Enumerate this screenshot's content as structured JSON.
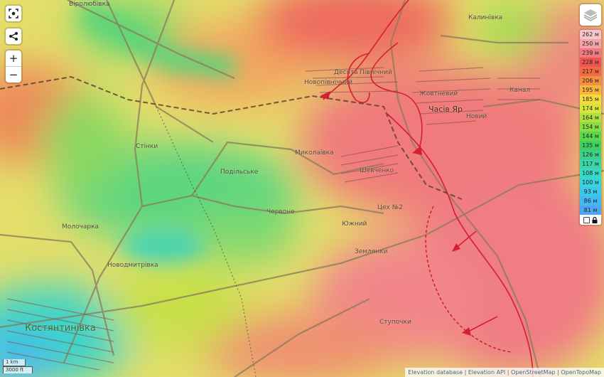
{
  "controls": {
    "fullscreen_icon": "target-frame-icon",
    "share_icon": "share-icon",
    "zoom_in": "+",
    "zoom_out": "−",
    "layers_icon": "layers-icon"
  },
  "legend": {
    "levels": [
      {
        "label": "262 м",
        "color": "#f6c6cc"
      },
      {
        "label": "250 м",
        "color": "#f3a3aa"
      },
      {
        "label": "239 м",
        "color": "#f07a80"
      },
      {
        "label": "228 м",
        "color": "#ee5550"
      },
      {
        "label": "217 м",
        "color": "#f16a45"
      },
      {
        "label": "206 м",
        "color": "#f59040"
      },
      {
        "label": "195 м",
        "color": "#f8b43c"
      },
      {
        "label": "185 м",
        "color": "#f4dc3c"
      },
      {
        "label": "174 м",
        "color": "#d8e63c"
      },
      {
        "label": "164 м",
        "color": "#b0e040"
      },
      {
        "label": "154 м",
        "color": "#88dc44"
      },
      {
        "label": "144 м",
        "color": "#5cd64a"
      },
      {
        "label": "135 м",
        "color": "#40d060"
      },
      {
        "label": "126 м",
        "color": "#3cd088"
      },
      {
        "label": "117 м",
        "color": "#3ad4a8"
      },
      {
        "label": "108 м",
        "color": "#38d8c4"
      },
      {
        "label": "100 м",
        "color": "#38d4dc"
      },
      {
        "label": "93 м",
        "color": "#3cc8ea"
      },
      {
        "label": "86 м",
        "color": "#44b8f0"
      },
      {
        "label": "81 м",
        "color": "#4aa8f2"
      }
    ],
    "checkbox_checked": false,
    "lock_icon": "lock-icon"
  },
  "places": {
    "virolyubivka": "Віролюбівка",
    "desyata": "Десята",
    "pivnichnyi": "Північний",
    "novopivnichnyi": "Новопівнічний",
    "zhovtnevyi": "Жовтневий",
    "chasiv_yar": "Часів Яр",
    "novyi": "Новий",
    "kanal": "Канал",
    "kalynivka": "Калинівка",
    "stinky": "Стінки",
    "podilske": "Подільське",
    "mykolaivka": "Миколаївка",
    "shevchenko": "Шевченко",
    "chervone": "Червоне",
    "tsekh2": "Цех №2",
    "yuzhnyi": "Южний",
    "zemlyanky": "Землянки",
    "molocharka": "Молочарка",
    "novodmytrivka": "Новодмитрівка",
    "stupochky": "Ступочки",
    "kostiantynivka": "Костянтинівка"
  },
  "scale": {
    "metric": "1 km",
    "imperial": "3000 ft"
  },
  "attribution": [
    "Elevation database",
    "Elevation API",
    "OpenStreetMap",
    "OpenTopoMap"
  ],
  "colors": {
    "front_line": "#d42030",
    "road": "#8a7a5a",
    "railway": "#5a3a2a"
  }
}
